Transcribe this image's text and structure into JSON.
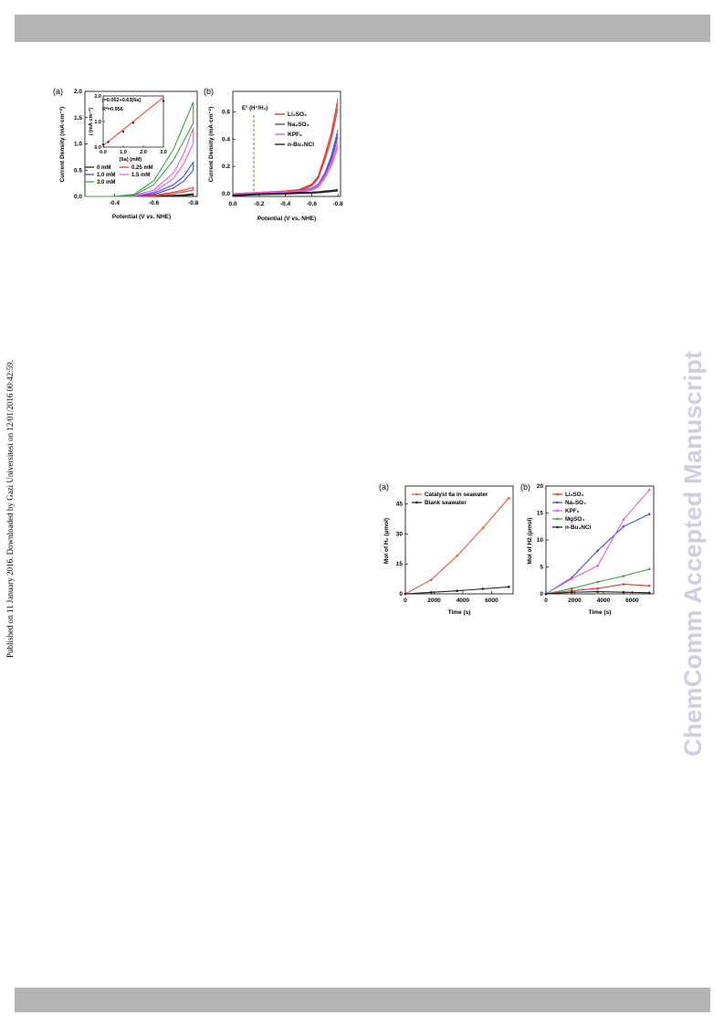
{
  "watermark_text": "ChemComm Accepted Manuscript",
  "side_note": "Published on 11 January 2016. Downloaded by Gazi Universitesi on 12/01/2016 00:42:59.",
  "figure1": {
    "panel_a": {
      "label": "(a)",
      "xlabel": "Potential (V vs. NHE)",
      "ylabel": "Current Density (mA·cm⁻²)",
      "x_ticks": [
        "-0.4",
        "-0.6",
        "-0.8"
      ],
      "y_ticks": [
        "0.0",
        "0.5",
        "1.0",
        "1.5",
        "2.0"
      ],
      "legend": [
        {
          "label": "0 mM",
          "color": "#222222"
        },
        {
          "label": "0.25 mM",
          "color": "#e8342a"
        },
        {
          "label": "1.0 mM",
          "color": "#3b4fd6"
        },
        {
          "label": "1.5 mM",
          "color": "#e85ce0"
        },
        {
          "label": "3.0 mM",
          "color": "#3aa33a"
        }
      ],
      "inset": {
        "equation": "j=0.052+0.63[6a]",
        "r2": "R²=0.956",
        "xlabel": "[6a] (mM)",
        "ylabel": "j (mA·cm⁻²)",
        "x_ticks": [
          "0.0",
          "1.0",
          "2.0",
          "3.0"
        ],
        "y_ticks": [
          "0.0",
          "1.0",
          "2.0"
        ]
      }
    },
    "panel_b": {
      "label": "(b)",
      "xlabel": "Potential (V vs. NHE)",
      "ylabel": "Current Density (mA·cm⁻²)",
      "x_ticks": [
        "0.0",
        "-0.2",
        "-0.4",
        "-0.6",
        "-0.8"
      ],
      "y_ticks": [
        "0.0",
        "0.2",
        "0.4",
        "0.6"
      ],
      "annotation": "E° (H⁺/H₂)",
      "legend": [
        {
          "label": "Li₂SO₄",
          "color": "#e8342a"
        },
        {
          "label": "Na₂SO₄",
          "color": "#3b4fd6"
        },
        {
          "label": "KPF₆",
          "color": "#e85ce0"
        },
        {
          "label": "n-Bu₄NCl",
          "color": "#222222"
        }
      ]
    }
  },
  "chart_data": [
    {
      "type": "line",
      "title": "(a)",
      "xlabel": "Potential (V vs. NHE)",
      "ylabel": "Current Density (mA·cm⁻²)",
      "xlim": [
        -0.25,
        -0.82
      ],
      "ylim": [
        0,
        2.0
      ],
      "x": [
        -0.25,
        -0.4,
        -0.5,
        -0.6,
        -0.7,
        -0.75,
        -0.8
      ],
      "series": [
        {
          "name": "0 mM",
          "values": [
            0.0,
            0.0,
            0.0,
            0.0,
            0.02,
            0.03,
            0.05
          ]
        },
        {
          "name": "0.25 mM",
          "values": [
            0.0,
            0.0,
            0.0,
            0.02,
            0.08,
            0.12,
            0.17
          ]
        },
        {
          "name": "1.0 mM",
          "values": [
            0.0,
            0.0,
            0.01,
            0.06,
            0.22,
            0.38,
            0.65
          ]
        },
        {
          "name": "1.5 mM",
          "values": [
            0.0,
            0.0,
            0.02,
            0.12,
            0.45,
            0.8,
            1.3
          ]
        },
        {
          "name": "3.0 mM",
          "values": [
            0.0,
            0.0,
            0.04,
            0.3,
            0.9,
            1.35,
            1.8
          ]
        }
      ],
      "inset": {
        "type": "scatter",
        "x": [
          0.0,
          0.25,
          1.0,
          1.5,
          3.0
        ],
        "y": [
          0.1,
          0.2,
          0.6,
          0.95,
          1.8
        ],
        "fit": {
          "intercept": 0.052,
          "slope": 0.63
        },
        "xlim": [
          0,
          3.0
        ],
        "ylim": [
          0,
          2.0
        ]
      }
    },
    {
      "type": "line",
      "title": "(b)",
      "xlabel": "Potential (V vs. NHE)",
      "ylabel": "Current Density (mA·cm⁻²)",
      "xlim": [
        0.0,
        -0.82
      ],
      "ylim": [
        -0.02,
        0.75
      ],
      "x": [
        0.0,
        -0.2,
        -0.4,
        -0.5,
        -0.6,
        -0.65,
        -0.7,
        -0.75,
        -0.8
      ],
      "reference_line_x": -0.16,
      "series": [
        {
          "name": "Li₂SO₄",
          "values": [
            0.0,
            0.01,
            0.02,
            0.03,
            0.07,
            0.13,
            0.28,
            0.45,
            0.7
          ]
        },
        {
          "name": "Na₂SO₄",
          "values": [
            0.0,
            0.01,
            0.015,
            0.02,
            0.04,
            0.07,
            0.15,
            0.28,
            0.47
          ]
        },
        {
          "name": "KPF₆",
          "values": [
            0.0,
            0.01,
            0.015,
            0.02,
            0.035,
            0.06,
            0.13,
            0.23,
            0.38
          ]
        },
        {
          "name": "n-Bu₄NCl",
          "values": [
            -0.01,
            0.0,
            0.005,
            0.01,
            0.012,
            0.015,
            0.02,
            0.025,
            0.03
          ]
        }
      ]
    },
    {
      "type": "line",
      "title": "(a)",
      "xlabel": "Time (s)",
      "ylabel": "Mol of H₂ (μmol)",
      "xlim": [
        0,
        7500
      ],
      "ylim": [
        0,
        54
      ],
      "x_ticks": [
        "0",
        "2000",
        "4000",
        "6000"
      ],
      "y_ticks": [
        "0",
        "15",
        "30",
        "45"
      ],
      "series": [
        {
          "name": "Catalyst 6a in seawater",
          "color": "#e8543a",
          "x": [
            0,
            1800,
            3600,
            5400,
            7200
          ],
          "values": [
            0,
            7,
            19,
            33,
            48
          ]
        },
        {
          "name": "Blank seawater",
          "color": "#222222",
          "x": [
            0,
            1800,
            3600,
            5400,
            7200
          ],
          "values": [
            0,
            0.8,
            1.5,
            2.5,
            3.5
          ]
        }
      ]
    },
    {
      "type": "line",
      "title": "(b)",
      "xlabel": "Time (s)",
      "ylabel": "Mol of H2 (μmol)",
      "xlim": [
        0,
        7500
      ],
      "ylim": [
        0,
        20
      ],
      "x_ticks": [
        "0",
        "2000",
        "4000",
        "6000"
      ],
      "y_ticks": [
        "0",
        "5",
        "10",
        "15",
        "20"
      ],
      "series": [
        {
          "name": "Li₂SO₄",
          "color": "#e8342a",
          "x": [
            0,
            1800,
            3600,
            5400,
            7200
          ],
          "values": [
            0,
            0.6,
            1.0,
            1.8,
            1.5
          ]
        },
        {
          "name": "Na₂SO₄",
          "color": "#3b4fd6",
          "x": [
            0,
            1800,
            3600,
            5400,
            7200
          ],
          "values": [
            0,
            3.0,
            8.0,
            12.5,
            14.8
          ]
        },
        {
          "name": "KPF₆",
          "color": "#e85ce0",
          "x": [
            0,
            1800,
            3600,
            5400,
            7200
          ],
          "values": [
            0,
            2.8,
            5.2,
            13.8,
            19.3
          ]
        },
        {
          "name": "MgSO₄",
          "color": "#3aa33a",
          "x": [
            0,
            1800,
            3600,
            5400,
            7200
          ],
          "values": [
            0,
            1.0,
            2.2,
            3.3,
            4.6
          ]
        },
        {
          "name": "n-Bu₄NCl",
          "color": "#222222",
          "x": [
            0,
            1800,
            3600,
            5400,
            7200
          ],
          "values": [
            0,
            0.3,
            0.4,
            0.3,
            0.2
          ]
        }
      ]
    }
  ]
}
